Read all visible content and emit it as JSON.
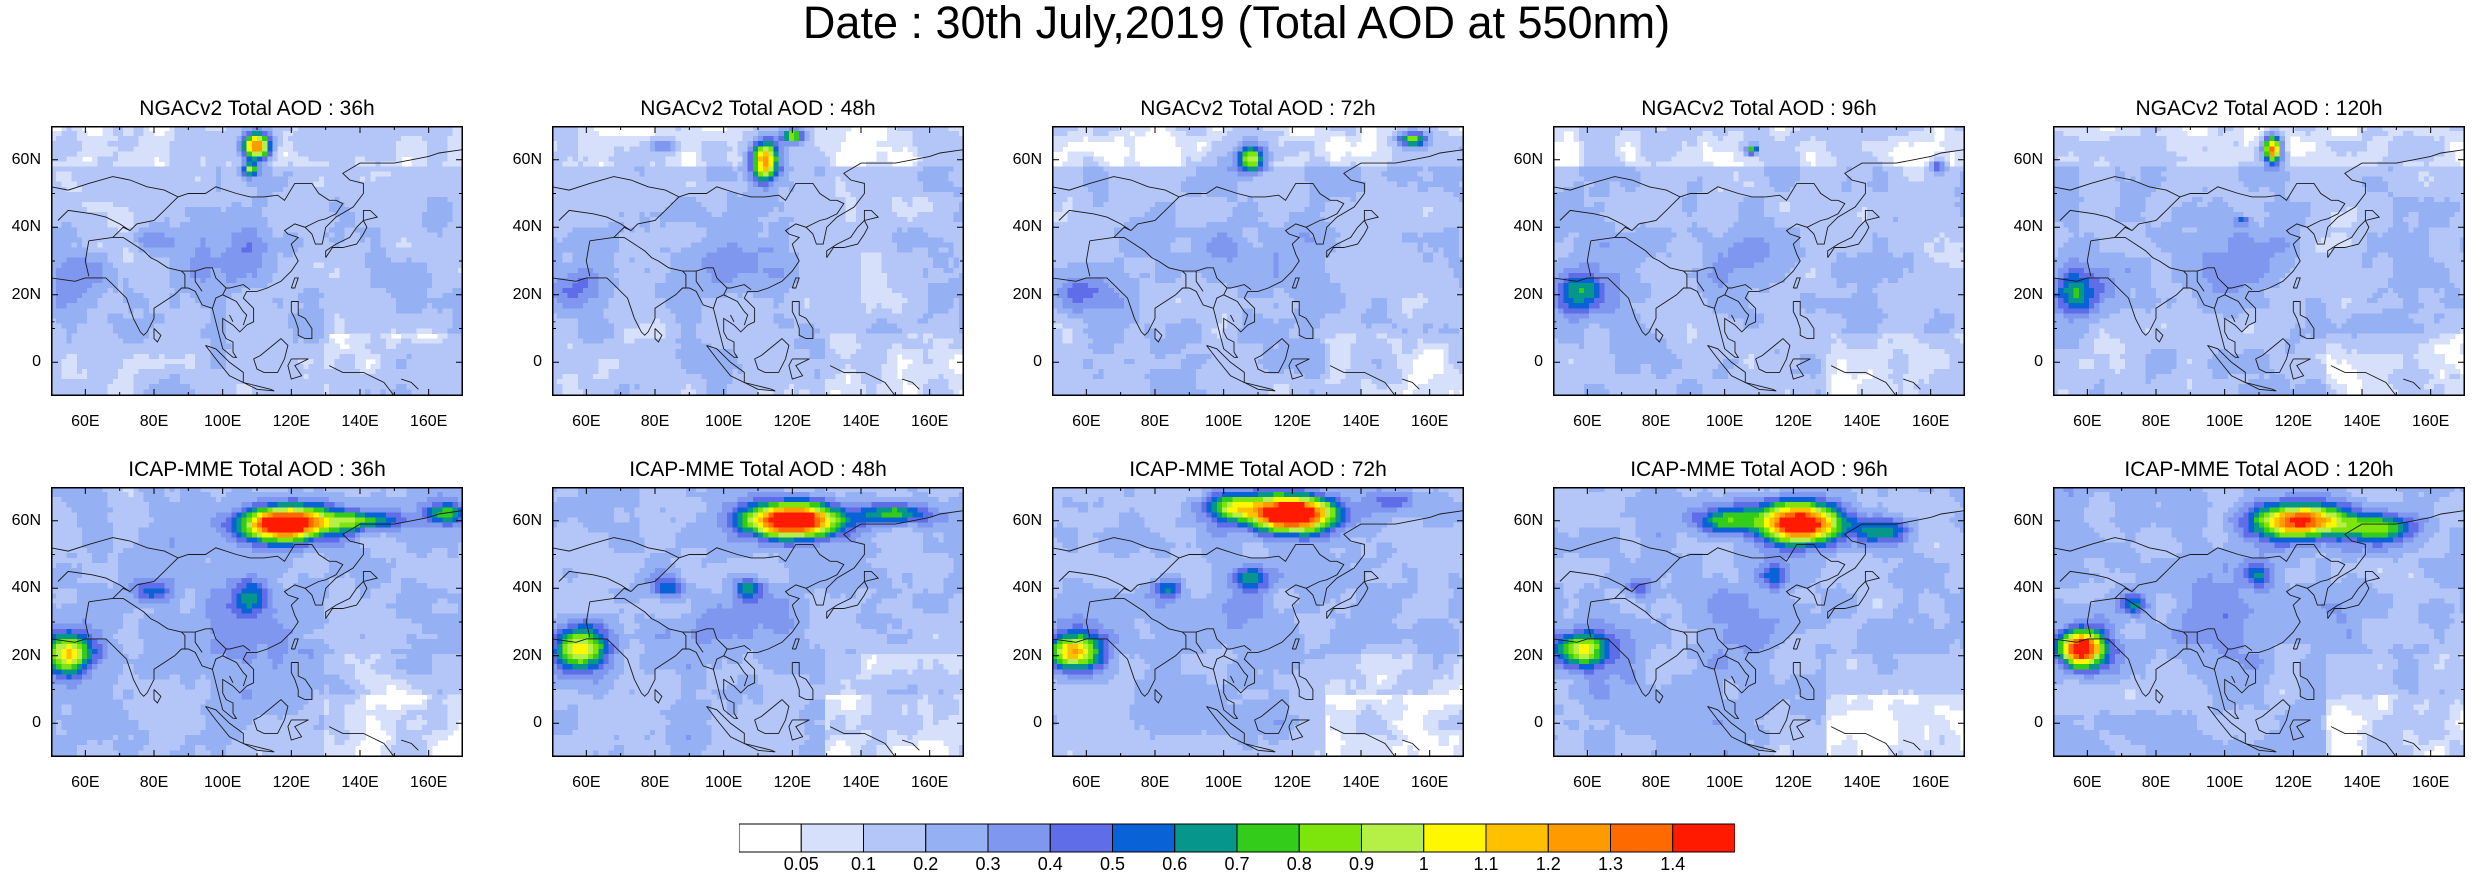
{
  "title": "Date : 30th July,2019 (Total AOD at 550nm)",
  "map": {
    "lon_range": [
      50,
      170
    ],
    "lat_range": [
      -10,
      70
    ],
    "lat_ticks": [
      "60N",
      "40N",
      "20N",
      "0"
    ],
    "lon_ticks": [
      "60E",
      "80E",
      "100E",
      "120E",
      "140E",
      "160E"
    ]
  },
  "panels": [
    {
      "title": "NGACv2 Total AOD : 36h",
      "model": "NGACv2",
      "lead": "36h"
    },
    {
      "title": "NGACv2 Total AOD : 48h",
      "model": "NGACv2",
      "lead": "48h"
    },
    {
      "title": "NGACv2 Total AOD : 72h",
      "model": "NGACv2",
      "lead": "72h"
    },
    {
      "title": "NGACv2 Total AOD : 96h",
      "model": "NGACv2",
      "lead": "96h"
    },
    {
      "title": "NGACv2 Total AOD : 120h",
      "model": "NGACv2",
      "lead": "120h"
    },
    {
      "title": "ICAP-MME Total AOD : 36h",
      "model": "ICAP-MME",
      "lead": "36h"
    },
    {
      "title": "ICAP-MME Total AOD : 48h",
      "model": "ICAP-MME",
      "lead": "48h"
    },
    {
      "title": "ICAP-MME Total AOD : 72h",
      "model": "ICAP-MME",
      "lead": "72h"
    },
    {
      "title": "ICAP-MME Total AOD : 96h",
      "model": "ICAP-MME",
      "lead": "96h"
    },
    {
      "title": "ICAP-MME Total AOD : 120h",
      "model": "ICAP-MME",
      "lead": "120h"
    }
  ],
  "colorbar": {
    "labels": [
      "0.05",
      "0.1",
      "0.2",
      "0.3",
      "0.4",
      "0.5",
      "0.6",
      "0.7",
      "0.8",
      "0.9",
      "1",
      "1.1",
      "1.2",
      "1.3",
      "1.4"
    ],
    "colors": [
      "#ffffff",
      "#d6e0fb",
      "#b4c6f7",
      "#96b0f4",
      "#7f97ef",
      "#5f6ee8",
      "#0a63d6",
      "#07968c",
      "#33cc1a",
      "#7de40c",
      "#b6f047",
      "#fff700",
      "#ffc000",
      "#ff9a00",
      "#ff6a00",
      "#ff1a00"
    ]
  }
}
